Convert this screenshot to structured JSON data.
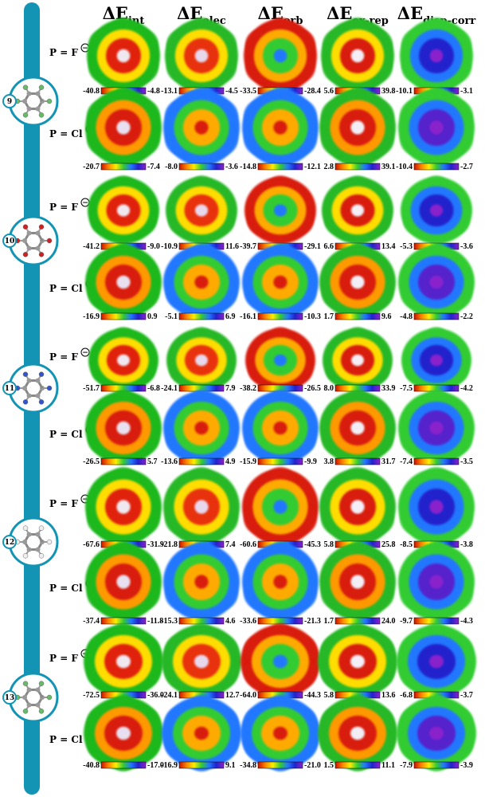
{
  "header_symbol": "ΔE",
  "columns": [
    {
      "id": "int",
      "subscript": "int"
    },
    {
      "id": "elec",
      "subscript": "elec"
    },
    {
      "id": "orb",
      "subscript": "orb"
    },
    {
      "id": "exrep",
      "subscript": "ex-rep"
    },
    {
      "id": "dispcorr",
      "subscript": "disp-corr"
    }
  ],
  "probe_prefix": "P = ",
  "probes": {
    "F": "F",
    "Cl": "Cl"
  },
  "charge_symbol": "−",
  "molecules": [
    {
      "number": "9",
      "icon": "hexafluorobenzene-molecule-icon"
    },
    {
      "number": "10",
      "icon": "triazine-molecule-icon"
    },
    {
      "number": "11",
      "icon": "trifluorotriazine-molecule-icon"
    },
    {
      "number": "12",
      "icon": "trinitrobenzene-molecule-icon"
    },
    {
      "number": "13",
      "icon": "tetracyanobenzene-molecule-icon"
    }
  ],
  "rows": [
    {
      "molecule": "9",
      "probe": "F",
      "ranges": [
        [
          "-40.8",
          "-4.8"
        ],
        [
          "-13.1",
          "-4.5"
        ],
        [
          "-33.5",
          "-28.4"
        ],
        [
          "5.6",
          "39.8"
        ],
        [
          "-10.1",
          "-3.1"
        ]
      ]
    },
    {
      "molecule": "9",
      "probe": "Cl",
      "ranges": [
        [
          "-20.7",
          "-7.4"
        ],
        [
          "-8.0",
          "-3.6"
        ],
        [
          "-14.8",
          "-12.1"
        ],
        [
          "2.8",
          "39.1"
        ],
        [
          "-10.4",
          "-2.7"
        ]
      ]
    },
    {
      "molecule": "10",
      "probe": "F",
      "ranges": [
        [
          "-41.2",
          "-9.0"
        ],
        [
          "-10.9",
          "11.6"
        ],
        [
          "-39.7",
          "-29.1"
        ],
        [
          "6.6",
          "13.4"
        ],
        [
          "-5.3",
          "-3.6"
        ]
      ]
    },
    {
      "molecule": "10",
      "probe": "Cl",
      "ranges": [
        [
          "-16.9",
          "0.9"
        ],
        [
          "-5.1",
          "6.9"
        ],
        [
          "-16.1",
          "-10.3"
        ],
        [
          "1.7",
          "9.6"
        ],
        [
          "-4.8",
          "-2.2"
        ]
      ]
    },
    {
      "molecule": "11",
      "probe": "F",
      "ranges": [
        [
          "-51.7",
          "-6.8"
        ],
        [
          "-24.1",
          "7.9"
        ],
        [
          "-38.2",
          "-26.5"
        ],
        [
          "8.0",
          "33.9"
        ],
        [
          "-7.5",
          "-4.2"
        ]
      ]
    },
    {
      "molecule": "11",
      "probe": "Cl",
      "ranges": [
        [
          "-26.5",
          "5.7"
        ],
        [
          "-13.6",
          "4.9"
        ],
        [
          "-15.9",
          "-9.9"
        ],
        [
          "3.8",
          "31.7"
        ],
        [
          "-7.4",
          "-3.5"
        ]
      ]
    },
    {
      "molecule": "12",
      "probe": "F",
      "ranges": [
        [
          "-67.6",
          "-31.9"
        ],
        [
          "-21.8",
          "7.4"
        ],
        [
          "-60.6",
          "-45.3"
        ],
        [
          "5.8",
          "25.8"
        ],
        [
          "-8.5",
          "-3.8"
        ]
      ]
    },
    {
      "molecule": "12",
      "probe": "Cl",
      "ranges": [
        [
          "-37.4",
          "-11.8"
        ],
        [
          "-15.3",
          "4.6"
        ],
        [
          "-33.6",
          "-21.3"
        ],
        [
          "1.7",
          "24.0"
        ],
        [
          "-9.7",
          "-4.3"
        ]
      ]
    },
    {
      "molecule": "13",
      "probe": "F",
      "ranges": [
        [
          "-72.5",
          "-36.0"
        ],
        [
          "-24.1",
          "12.7"
        ],
        [
          "-64.0",
          "-44.3"
        ],
        [
          "5.8",
          "13.6"
        ],
        [
          "-6.8",
          "-3.7"
        ]
      ]
    },
    {
      "molecule": "13",
      "probe": "Cl",
      "ranges": [
        [
          "-40.8",
          "-17.0"
        ],
        [
          "-16.9",
          "9.1"
        ],
        [
          "-34.8",
          "-21.0"
        ],
        [
          "1.5",
          "11.1"
        ],
        [
          "-7.9",
          "-3.9"
        ]
      ]
    }
  ],
  "colors": {
    "sidebar": "#1494b4",
    "scale": [
      "#cc1100",
      "#ff8800",
      "#ffee00",
      "#33cc33",
      "#2277ff",
      "#2222cc",
      "#8a22cc"
    ]
  }
}
